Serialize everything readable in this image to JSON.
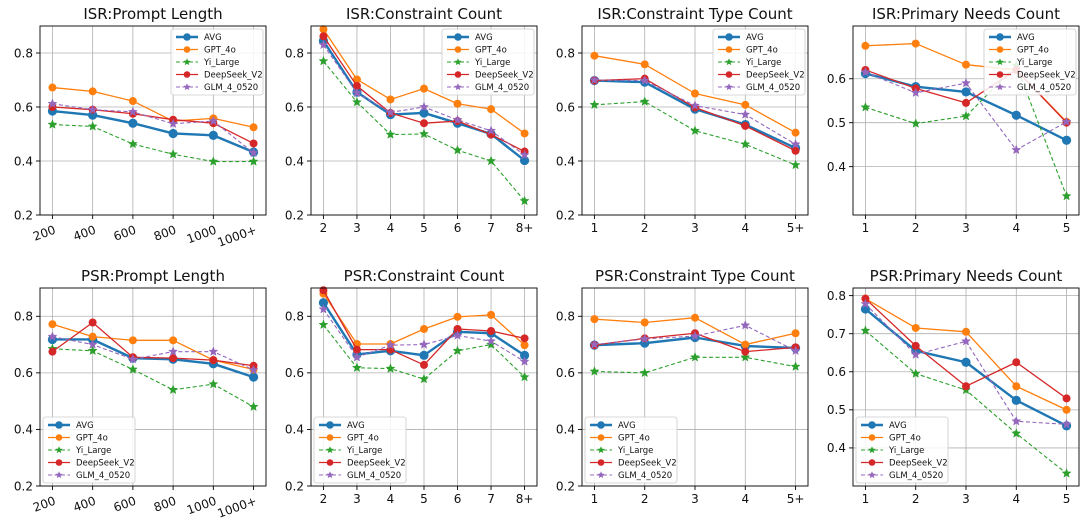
{
  "series_styles": [
    {
      "name": "AVG",
      "color": "#1f77b4",
      "marker": "circle",
      "dash": false,
      "width": 2.4
    },
    {
      "name": "GPT_4o",
      "color": "#ff7f0e",
      "marker": "circle",
      "dash": false,
      "width": 1.3
    },
    {
      "name": "Yi_Large",
      "color": "#2ca02c",
      "marker": "star",
      "dash": true,
      "width": 1.1
    },
    {
      "name": "DeepSeek_V2",
      "color": "#d62728",
      "marker": "circle",
      "dash": false,
      "width": 1.3
    },
    {
      "name": "GLM_4_0520",
      "color": "#9467bd",
      "marker": "star",
      "dash": true,
      "width": 1.1
    }
  ],
  "chart_data": [
    {
      "type": "line",
      "title": "ISR:Prompt Length",
      "categories": [
        "200",
        "400",
        "600",
        "800",
        "1000",
        "1000+"
      ],
      "rotate_ticks": true,
      "ylim": [
        0.2,
        0.9
      ],
      "yticks": [
        0.2,
        0.4,
        0.6,
        0.8
      ],
      "legend": "top-right",
      "series": [
        {
          "name": "AVG",
          "values": [
            0.585,
            0.57,
            0.54,
            0.502,
            0.495,
            0.433
          ]
        },
        {
          "name": "GPT_4o",
          "values": [
            0.672,
            0.658,
            0.622,
            0.548,
            0.558,
            0.525
          ]
        },
        {
          "name": "Yi_Large",
          "values": [
            0.535,
            0.528,
            0.463,
            0.425,
            0.398,
            0.398
          ]
        },
        {
          "name": "DeepSeek_V2",
          "values": [
            0.6,
            0.59,
            0.575,
            0.553,
            0.54,
            0.465
          ]
        },
        {
          "name": "GLM_4_0520",
          "values": [
            0.612,
            0.59,
            0.582,
            0.538,
            0.548,
            0.43
          ]
        }
      ]
    },
    {
      "type": "line",
      "title": "ISR:Constraint Count",
      "categories": [
        "2",
        "3",
        "4",
        "5",
        "6",
        "7",
        "8+"
      ],
      "rotate_ticks": false,
      "ylim": [
        0.2,
        0.9
      ],
      "yticks": [
        0.2,
        0.4,
        0.6,
        0.8
      ],
      "legend": "top-right",
      "series": [
        {
          "name": "AVG",
          "values": [
            0.845,
            0.655,
            0.572,
            0.578,
            0.54,
            0.5,
            0.402
          ]
        },
        {
          "name": "GPT_4o",
          "values": [
            0.888,
            0.702,
            0.628,
            0.668,
            0.612,
            0.592,
            0.502
          ]
        },
        {
          "name": "Yi_Large",
          "values": [
            0.77,
            0.618,
            0.498,
            0.5,
            0.44,
            0.4,
            0.252
          ]
        },
        {
          "name": "DeepSeek_V2",
          "values": [
            0.862,
            0.678,
            0.578,
            0.54,
            0.548,
            0.498,
            0.435
          ]
        },
        {
          "name": "GLM_4_0520",
          "values": [
            0.83,
            0.652,
            0.58,
            0.6,
            0.552,
            0.512,
            0.422
          ]
        }
      ]
    },
    {
      "type": "line",
      "title": "ISR:Constraint Type Count",
      "categories": [
        "1",
        "2",
        "3",
        "4",
        "5+"
      ],
      "rotate_ticks": false,
      "ylim": [
        0.2,
        0.9
      ],
      "yticks": [
        0.2,
        0.4,
        0.6,
        0.8
      ],
      "legend": "top-right",
      "series": [
        {
          "name": "AVG",
          "values": [
            0.698,
            0.692,
            0.592,
            0.535,
            0.448
          ]
        },
        {
          "name": "GPT_4o",
          "values": [
            0.79,
            0.758,
            0.65,
            0.608,
            0.505
          ]
        },
        {
          "name": "Yi_Large",
          "values": [
            0.608,
            0.62,
            0.512,
            0.462,
            0.385
          ]
        },
        {
          "name": "DeepSeek_V2",
          "values": [
            0.698,
            0.705,
            0.598,
            0.53,
            0.438
          ]
        },
        {
          "name": "GLM_4_0520",
          "values": [
            0.7,
            0.698,
            0.605,
            0.572,
            0.462
          ]
        }
      ]
    },
    {
      "type": "line",
      "title": "ISR:Primary Needs Count",
      "categories": [
        "1",
        "2",
        "3",
        "4",
        "5"
      ],
      "rotate_ticks": false,
      "ylim": [
        0.29,
        0.72
      ],
      "yticks": [
        0.4,
        0.5,
        0.6
      ],
      "legend": "top-right",
      "series": [
        {
          "name": "AVG",
          "values": [
            0.612,
            0.582,
            0.57,
            0.517,
            0.46
          ]
        },
        {
          "name": "GPT_4o",
          "values": [
            0.675,
            0.68,
            0.632,
            0.62,
            0.502
          ]
        },
        {
          "name": "Yi_Large",
          "values": [
            0.535,
            0.498,
            0.515,
            0.63,
            0.333
          ]
        },
        {
          "name": "DeepSeek_V2",
          "values": [
            0.62,
            0.578,
            0.545,
            0.62,
            0.5
          ]
        },
        {
          "name": "GLM_4_0520",
          "values": [
            0.615,
            0.568,
            0.59,
            0.438,
            0.502
          ]
        }
      ]
    },
    {
      "type": "line",
      "title": "PSR:Prompt Length",
      "categories": [
        "200",
        "400",
        "600",
        "800",
        "1000",
        "1000+"
      ],
      "rotate_ticks": true,
      "ylim": [
        0.2,
        0.9
      ],
      "yticks": [
        0.2,
        0.4,
        0.6,
        0.8
      ],
      "legend": "bottom-left",
      "series": [
        {
          "name": "AVG",
          "values": [
            0.718,
            0.718,
            0.652,
            0.648,
            0.632,
            0.585
          ]
        },
        {
          "name": "GPT_4o",
          "values": [
            0.772,
            0.728,
            0.715,
            0.715,
            0.645,
            0.612
          ]
        },
        {
          "name": "Yi_Large",
          "values": [
            0.685,
            0.678,
            0.612,
            0.54,
            0.56,
            0.48
          ]
        },
        {
          "name": "DeepSeek_V2",
          "values": [
            0.675,
            0.778,
            0.655,
            0.652,
            0.645,
            0.625
          ]
        },
        {
          "name": "GLM_4_0520",
          "values": [
            0.728,
            0.7,
            0.648,
            0.675,
            0.675,
            0.61
          ]
        }
      ]
    },
    {
      "type": "line",
      "title": "PSR:Constraint Count",
      "categories": [
        "2",
        "3",
        "4",
        "5",
        "6",
        "7",
        "8+"
      ],
      "rotate_ticks": false,
      "ylim": [
        0.2,
        0.9
      ],
      "yticks": [
        0.2,
        0.4,
        0.6,
        0.8
      ],
      "legend": "bottom-left",
      "series": [
        {
          "name": "AVG",
          "values": [
            0.848,
            0.665,
            0.678,
            0.662,
            0.745,
            0.74,
            0.662
          ]
        },
        {
          "name": "GPT_4o",
          "values": [
            0.88,
            0.702,
            0.702,
            0.755,
            0.798,
            0.805,
            0.698
          ]
        },
        {
          "name": "Yi_Large",
          "values": [
            0.77,
            0.618,
            0.615,
            0.578,
            0.678,
            0.7,
            0.585
          ]
        },
        {
          "name": "DeepSeek_V2",
          "values": [
            0.892,
            0.682,
            0.682,
            0.628,
            0.755,
            0.748,
            0.722
          ]
        },
        {
          "name": "GLM_4_0520",
          "values": [
            0.825,
            0.655,
            0.698,
            0.7,
            0.732,
            0.712,
            0.64
          ]
        }
      ]
    },
    {
      "type": "line",
      "title": "PSR:Constraint Type Count",
      "categories": [
        "1",
        "2",
        "3",
        "4",
        "5+"
      ],
      "rotate_ticks": false,
      "ylim": [
        0.2,
        0.9
      ],
      "yticks": [
        0.2,
        0.4,
        0.6,
        0.8
      ],
      "legend": "bottom-left",
      "series": [
        {
          "name": "AVG",
          "values": [
            0.698,
            0.705,
            0.725,
            0.695,
            0.688
          ]
        },
        {
          "name": "GPT_4o",
          "values": [
            0.79,
            0.778,
            0.795,
            0.7,
            0.74
          ]
        },
        {
          "name": "Yi_Large",
          "values": [
            0.605,
            0.6,
            0.655,
            0.655,
            0.622
          ]
        },
        {
          "name": "DeepSeek_V2",
          "values": [
            0.698,
            0.722,
            0.74,
            0.675,
            0.69
          ]
        },
        {
          "name": "GLM_4_0520",
          "values": [
            0.7,
            0.72,
            0.73,
            0.768,
            0.678
          ]
        }
      ]
    },
    {
      "type": "line",
      "title": "PSR:Primary Needs Count",
      "categories": [
        "1",
        "2",
        "3",
        "4",
        "5"
      ],
      "rotate_ticks": false,
      "ylim": [
        0.3,
        0.82
      ],
      "yticks": [
        0.4,
        0.5,
        0.6,
        0.7,
        0.8
      ],
      "legend": "bottom-left",
      "series": [
        {
          "name": "AVG",
          "values": [
            0.765,
            0.655,
            0.625,
            0.525,
            0.458
          ]
        },
        {
          "name": "GPT_4o",
          "values": [
            0.792,
            0.715,
            0.705,
            0.562,
            0.5
          ]
        },
        {
          "name": "Yi_Large",
          "values": [
            0.708,
            0.595,
            0.552,
            0.438,
            0.333
          ]
        },
        {
          "name": "DeepSeek_V2",
          "values": [
            0.792,
            0.668,
            0.562,
            0.625,
            0.53
          ]
        },
        {
          "name": "GLM_4_0520",
          "values": [
            0.778,
            0.645,
            0.68,
            0.47,
            0.462
          ]
        }
      ]
    }
  ]
}
